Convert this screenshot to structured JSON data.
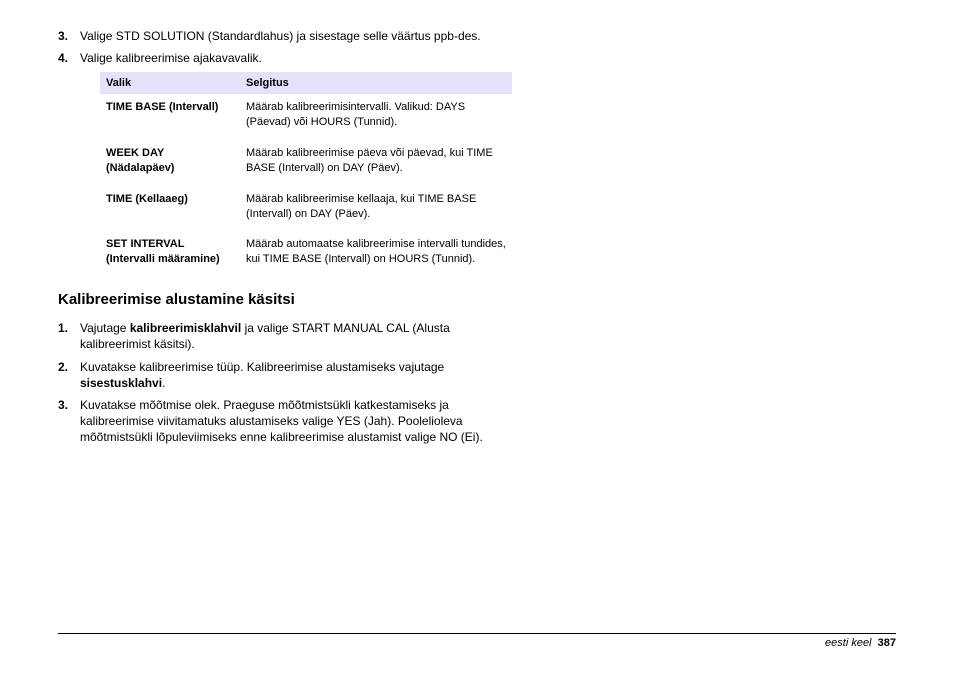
{
  "list1": {
    "items": [
      {
        "num": "3.",
        "text": "Valige STD SOLUTION (Standardlahus) ja sisestage selle väärtus ppb-des."
      },
      {
        "num": "4.",
        "text": "Valige kalibreerimise ajakavavalik."
      }
    ]
  },
  "table": {
    "headers": {
      "col1": "Valik",
      "col2": "Selgitus"
    },
    "rows": [
      {
        "opt": "TIME BASE (Intervall)",
        "desc": "Määrab kalibreerimisintervalli. Valikud: DAYS (Päevad) või HOURS (Tunnid)."
      },
      {
        "opt": "WEEK DAY (Nädalapäev)",
        "desc": "Määrab kalibreerimise päeva või päevad, kui TIME BASE (Intervall) on DAY (Päev)."
      },
      {
        "opt": "TIME (Kellaaeg)",
        "desc": "Määrab kalibreerimise kellaaja, kui TIME BASE (Intervall) on DAY (Päev)."
      },
      {
        "opt": "SET INTERVAL (Intervalli määramine)",
        "desc": "Määrab automaatse kalibreerimise intervalli tundides, kui TIME BASE (Intervall) on HOURS (Tunnid)."
      }
    ]
  },
  "subhead": "Kalibreerimise alustamine käsitsi",
  "list2": {
    "items": [
      {
        "num": "1.",
        "pre": "Vajutage ",
        "bold": "kalibreerimisklahvil",
        "post": " ja valige START MANUAL CAL (Alusta kalibreerimist käsitsi)."
      },
      {
        "num": "2.",
        "pre": "Kuvatakse kalibreerimise tüüp. Kalibreerimise alustamiseks vajutage ",
        "bold": "sisestusklahvi",
        "post": "."
      },
      {
        "num": "3.",
        "pre": "Kuvatakse mõõtmise olek. Praeguse mõõtmistsükli katkestamiseks ja kalibreerimise viivitamatuks alustamiseks valige YES (Jah). Poolelioleva mõõtmistsükli lõpuleviimiseks enne kalibreerimise alustamist valige NO (Ei).",
        "bold": "",
        "post": ""
      }
    ]
  },
  "footer": {
    "lang": "eesti keel",
    "page": "387"
  }
}
